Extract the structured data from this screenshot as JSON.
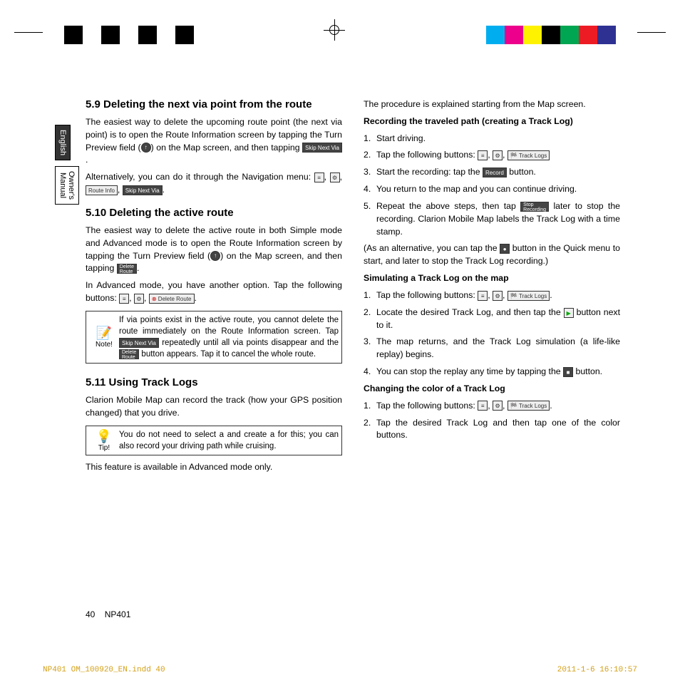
{
  "reg_colors_left": [
    "#000000",
    "#ffffff",
    "#000000",
    "#ffffff",
    "#000000",
    "#ffffff",
    "#000000"
  ],
  "reg_colors_right": [
    "#00aeef",
    "#ec008c",
    "#fff200",
    "#000000",
    "#00a651",
    "#ed1c24",
    "#2e3192"
  ],
  "tabs": {
    "english": "English",
    "manual": "Owner's\nManual"
  },
  "l": {
    "h1": "5.9 Deleting the next via point from the route",
    "p1a": "The easiest way to delete the upcoming route point (the next via point) is to open the Route Information screen by tapping the Turn Preview field (",
    "p1b": ") on the Map screen, and then tapping ",
    "p2": "Alternatively, you can do it through the Navigation menu: ",
    "h2": "5.10 Deleting the active route",
    "p3a": "The easiest way to delete the active route in both Simple mode and Advanced mode is to open the Route Information screen by tapping the Turn Preview field (",
    "p3b": ") on the Map screen, and then tapping ",
    "p4": "In Advanced mode, you have another option. Tap the following buttons: ",
    "note_label": "Note!",
    "note": "If via points exist in the active route, you cannot delete the route immediately on the Route Information screen. Tap ",
    "note2": " repeatedly until all via points disappear and the ",
    "note3": " button appears. Tap it to cancel the whole route.",
    "h3": "5.11 Using Track Logs",
    "p5": "Clarion Mobile Map can record the track (how your GPS position changed) that you drive.",
    "tip_label": "Tip!",
    "tip": "You do not need to select a               and create a            for this; you can also record your driving path while cruising.",
    "p6": "This feature is available in Advanced mode only."
  },
  "r": {
    "p1": "The procedure is explained starting from the Map screen.",
    "sh1": "Recording the traveled path (creating a Track Log)",
    "li1": "Start driving.",
    "li2": "Tap the following buttons: ",
    "li3a": "Start the recording: tap the ",
    "li3b": " button.",
    "li4": "You return to the map and you can continue driving.",
    "li5a": "Repeat the above steps, then tap ",
    "li5b": " later to stop the recording. Clarion Mobile Map labels the Track Log with a time stamp.",
    "p2a": "(As an alternative, you can tap the ",
    "p2b": " button in the Quick menu to start, and later to stop the Track Log recording.)",
    "sh2": "Simulating a Track Log on the map",
    "s1": "Tap the following buttons: ",
    "s2a": "Locate the desired Track Log, and then tap the ",
    "s2b": " button next to it.",
    "s3": "The map returns, and the Track Log simulation (a life-like replay) begins.",
    "s4a": "You can stop the replay any time by tapping the ",
    "s4b": " button.",
    "sh3": "Changing the color of a Track Log",
    "c1": "Tap the following buttons: ",
    "c2": "Tap the desired Track Log and then tap one of the color buttons."
  },
  "buttons": {
    "skip_next_via": "Skip Next Via",
    "delete_route": "Delete\nRoute",
    "route_info": "Route Info",
    "delete_route_btn": "Delete Route",
    "record": "Record",
    "stop_recording": "Stop\nRecording",
    "track_logs": "Track Logs",
    "menu": "Menu",
    "tools": "⚙"
  },
  "footer": {
    "page": "40",
    "model": "NP401"
  },
  "print": {
    "left": "NP401 OM_100920_EN.indd   40",
    "right": "2011-1-6   16:10:57"
  }
}
